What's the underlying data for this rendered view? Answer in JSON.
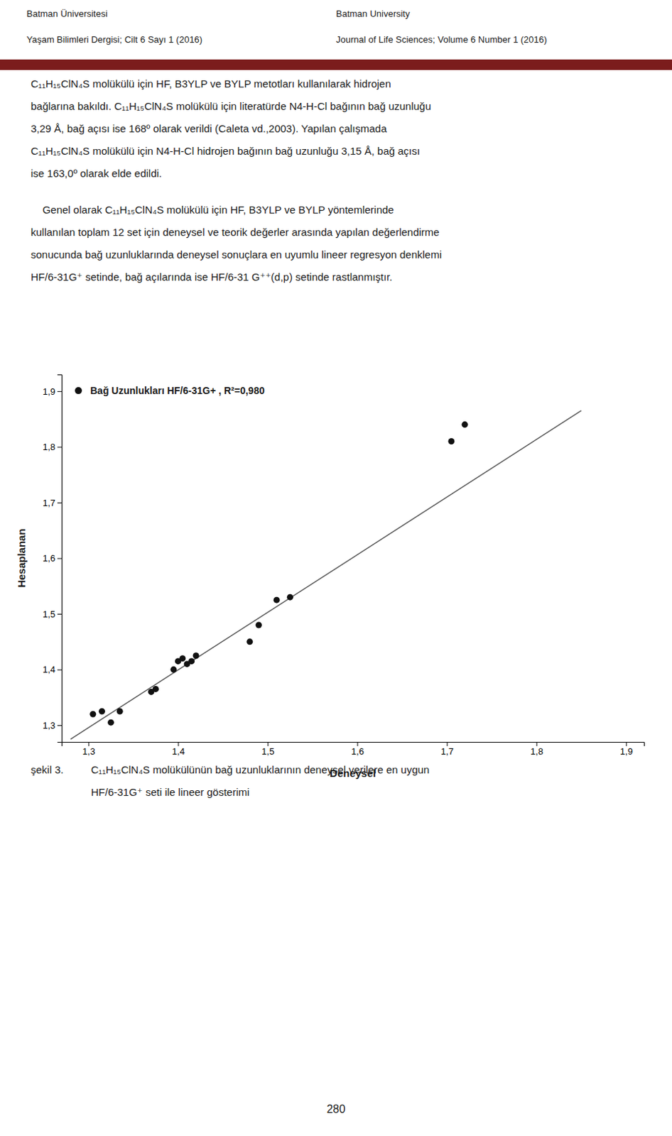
{
  "text_color": "#1a1a1a",
  "background_color": "#ffffff",
  "header": {
    "left": [
      "Batman Üniversitesi",
      "Yaşam Bilimleri Dergisi; Cilt 6 Sayı 1 (2016)"
    ],
    "right": [
      "Batman University",
      "Journal of Life Sciences; Volume 6 Number 1 (2016)"
    ],
    "bar_color": "#7B1C1C"
  },
  "paragraphs": [
    [
      "C₁₁H₁₅ClN₄S molükülü için HF, B3YLP ve BYLP metotları kullanılarak hidrojen",
      "bağlarına bakıldı. C₁₁H₁₅ClN₄S molükülü için literatürde N4-H-Cl bağının bağ uzunluğu",
      "3,29 Å, bağ açısı ise 168º olarak verildi (Caleta vd.,2003). Yapılan çalışmada",
      "C₁₁H₁₅ClN₄S molükülü için N4-H-Cl hidrojen bağının bağ uzunluğu 3,15 Å, bağ açısı",
      "ise 163,0º olarak elde edildi."
    ],
    [
      "    Genel olarak C₁₁H₁₅ClN₄S molükülü için HF, B3YLP ve BYLP yöntemlerinde",
      "kullanılan toplam 12 set için deneysel ve teorik değerler arasında yapılan değerlendirme",
      "sonucunda bağ uzunluklarında deneysel sonuçlara en uyumlu lineer regresyon denklemi",
      "HF/6-31G⁺ setinde, bağ açılarında ise HF/6-31 G⁺⁺(d,p) setinde rastlanmıştır."
    ]
  ],
  "caption": {
    "prefix": "şekil 3.",
    "lines": [
      "C₁₁H₁₅ClN₄S molükülünün bağ uzunluklarının deneysel verilere en uygun",
      "HF/6-31G⁺ seti ile lineer gösterimi"
    ]
  },
  "page_number": "280",
  "chart_data": {
    "type": "scatter",
    "xlabel": "Deneysel",
    "ylabel": "Hesaplanan",
    "xlim": [
      1.27,
      1.92
    ],
    "ylim": [
      1.27,
      1.93
    ],
    "xticks": [
      {
        "value": 1.3,
        "label": "1,3"
      },
      {
        "value": 1.4,
        "label": "1,4"
      },
      {
        "value": 1.5,
        "label": "1,5"
      },
      {
        "value": 1.6,
        "label": "1,6"
      },
      {
        "value": 1.7,
        "label": "1,7"
      },
      {
        "value": 1.8,
        "label": "1,8"
      },
      {
        "value": 1.9,
        "label": "1,9"
      }
    ],
    "yticks": [
      {
        "value": 1.3,
        "label": "1,3"
      },
      {
        "value": 1.4,
        "label": "1,4"
      },
      {
        "value": 1.5,
        "label": "1,5"
      },
      {
        "value": 1.6,
        "label": "1,6"
      },
      {
        "value": 1.7,
        "label": "1,7"
      },
      {
        "value": 1.8,
        "label": "1,8"
      },
      {
        "value": 1.9,
        "label": "1,9"
      }
    ],
    "grid": false,
    "legend": "upper left",
    "series": [
      {
        "type": "line",
        "color": "#555555",
        "x": [
          1.28,
          1.85
        ],
        "values": [
          1.275,
          1.865
        ]
      },
      {
        "type": "scatter",
        "name": "Bağ Uzunlukları HF/6-31G+ , R²=0,980",
        "color": "#111111",
        "x": [
          1.305,
          1.315,
          1.325,
          1.335,
          1.395,
          1.4,
          1.405,
          1.41,
          1.415,
          1.42,
          1.37,
          1.375,
          1.48,
          1.49,
          1.51,
          1.525,
          1.705,
          1.72
        ],
        "values": [
          1.32,
          1.325,
          1.305,
          1.325,
          1.4,
          1.415,
          1.42,
          1.41,
          1.415,
          1.425,
          1.36,
          1.365,
          1.45,
          1.48,
          1.525,
          1.53,
          1.81,
          1.84
        ]
      }
    ]
  }
}
